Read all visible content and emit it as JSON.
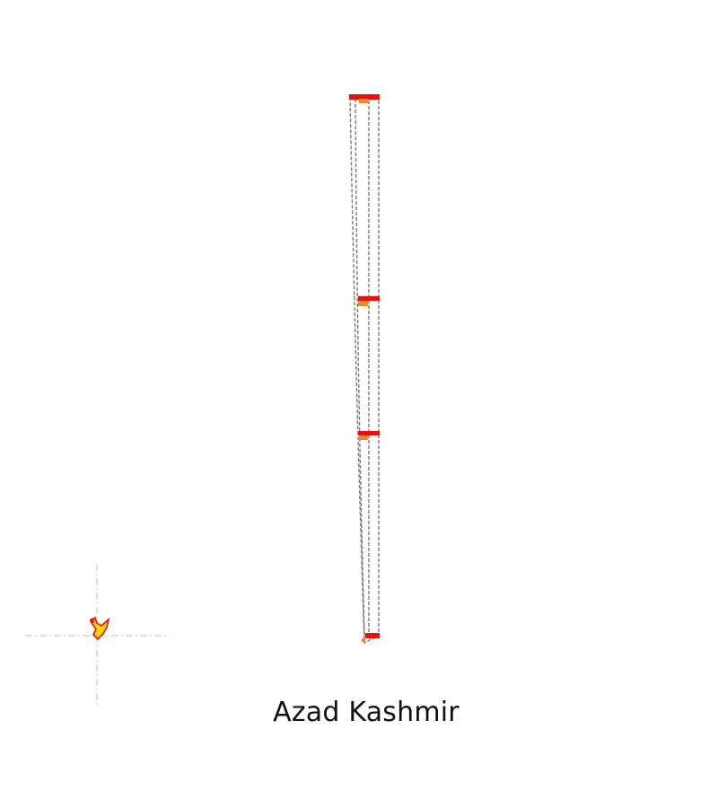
{
  "map": {
    "title": "Azad Kashmir",
    "colors": {
      "outline": "#7a7a7a",
      "guide": "#cfcfcf",
      "bar": "#e8120c",
      "marker": "#f0882a",
      "inset_fill": "#ffd400",
      "inset_outline": "#e8120c"
    }
  }
}
